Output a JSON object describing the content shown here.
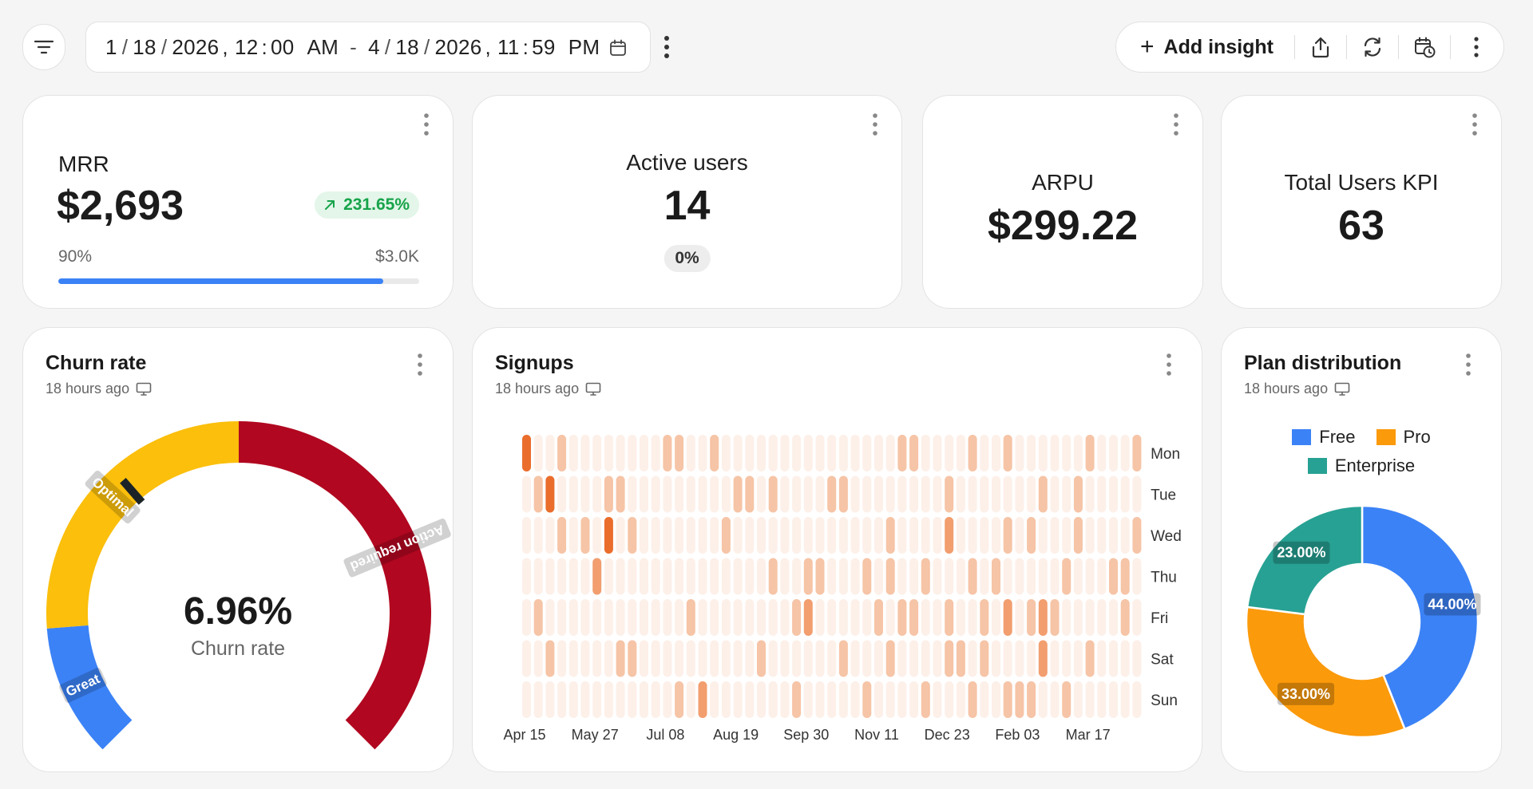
{
  "toolbar": {
    "date_range": {
      "start": {
        "month": "1",
        "day": "18",
        "year": "2026",
        "hour": "12",
        "minute": "00",
        "ampm": "AM"
      },
      "separator": "-",
      "end": {
        "month": "4",
        "day": "18",
        "year": "2026",
        "hour": "11",
        "minute": "59",
        "ampm": "PM"
      }
    },
    "add_insight_label": "Add insight",
    "icons": [
      "filter-icon",
      "calendar-icon",
      "kebab-icon",
      "plus-icon",
      "share-icon",
      "refresh-icon",
      "schedule-icon",
      "kebab-icon"
    ]
  },
  "cards": {
    "mrr": {
      "label": "MRR",
      "value": "$2,693",
      "trend": "231.65%",
      "trend_direction": "up",
      "progress_label": "90%",
      "progress_fraction": 0.9,
      "target": "$3.0K"
    },
    "active_users": {
      "label": "Active users",
      "value": "14",
      "change": "0%"
    },
    "arpu": {
      "label": "ARPU",
      "value": "$299.22"
    },
    "total_users": {
      "label": "Total Users KPI",
      "value": "63"
    },
    "churn": {
      "title": "Churn rate",
      "updated": "18 hours ago",
      "value": "6.96%",
      "label": "Churn rate",
      "zones": [
        "Great",
        "Optimal",
        "Action required"
      ]
    },
    "signups": {
      "title": "Signups",
      "updated": "18 hours ago"
    },
    "plan_distribution": {
      "title": "Plan distribution",
      "updated": "18 hours ago"
    }
  },
  "chart_data": [
    {
      "type": "gauge",
      "title": "Churn rate",
      "value": 6.96,
      "unit": "%",
      "zones": [
        {
          "label": "Great",
          "color": "#3b82f6"
        },
        {
          "label": "Optimal",
          "color": "#fbbf0c"
        },
        {
          "label": "Action required",
          "color": "#b10720"
        }
      ]
    },
    {
      "type": "heatmap",
      "title": "Signups",
      "rows": [
        "Mon",
        "Tue",
        "Wed",
        "Thu",
        "Fri",
        "Sat",
        "Sun"
      ],
      "x_ticks": [
        "Apr 15",
        "May 27",
        "Jul 08",
        "Aug 19",
        "Sep 30",
        "Nov 11",
        "Dec 23",
        "Feb 03",
        "Mar 17"
      ],
      "columns": 53,
      "low_color": "#fdf0e9",
      "high_color": "#ea6d2c",
      "values": [
        [
          3,
          0,
          0,
          1,
          0,
          0,
          0,
          0,
          0,
          0,
          0,
          0,
          1,
          1,
          0,
          0,
          1,
          0,
          0,
          0,
          0,
          0,
          0,
          0,
          0,
          0,
          0,
          0,
          0,
          0,
          0,
          0,
          1,
          1,
          0,
          0,
          0,
          0,
          1,
          0,
          0,
          1,
          0,
          0,
          0,
          0,
          0,
          0,
          1,
          0,
          0,
          0,
          1
        ],
        [
          0,
          1,
          3,
          0,
          0,
          0,
          0,
          1,
          1,
          0,
          0,
          0,
          0,
          0,
          0,
          0,
          0,
          0,
          1,
          1,
          0,
          1,
          0,
          0,
          0,
          0,
          1,
          1,
          0,
          0,
          0,
          0,
          0,
          0,
          0,
          0,
          1,
          0,
          0,
          0,
          0,
          0,
          0,
          0,
          1,
          0,
          0,
          1,
          0,
          0,
          0,
          0,
          0
        ],
        [
          0,
          0,
          0,
          1,
          0,
          1,
          0,
          3,
          0,
          1,
          0,
          0,
          0,
          0,
          0,
          0,
          0,
          1,
          0,
          0,
          0,
          0,
          0,
          0,
          0,
          0,
          0,
          0,
          0,
          0,
          0,
          1,
          0,
          0,
          0,
          0,
          2,
          0,
          0,
          0,
          0,
          1,
          0,
          1,
          0,
          0,
          0,
          1,
          0,
          0,
          0,
          0,
          1
        ],
        [
          0,
          0,
          0,
          0,
          0,
          0,
          2,
          0,
          0,
          0,
          0,
          0,
          0,
          0,
          0,
          0,
          0,
          0,
          0,
          0,
          0,
          1,
          0,
          0,
          1,
          1,
          0,
          0,
          0,
          1,
          0,
          1,
          0,
          0,
          1,
          0,
          0,
          0,
          1,
          0,
          1,
          0,
          0,
          0,
          0,
          0,
          1,
          0,
          0,
          0,
          1,
          1,
          0
        ],
        [
          0,
          1,
          0,
          0,
          0,
          0,
          0,
          0,
          0,
          0,
          0,
          0,
          0,
          0,
          1,
          0,
          0,
          0,
          0,
          0,
          0,
          0,
          0,
          1,
          2,
          0,
          0,
          0,
          0,
          0,
          1,
          0,
          1,
          1,
          0,
          0,
          1,
          0,
          0,
          1,
          0,
          2,
          0,
          1,
          2,
          1,
          0,
          0,
          0,
          0,
          0,
          1,
          0
        ],
        [
          0,
          0,
          1,
          0,
          0,
          0,
          0,
          0,
          1,
          1,
          0,
          0,
          0,
          0,
          0,
          0,
          0,
          0,
          0,
          0,
          1,
          0,
          0,
          0,
          0,
          0,
          0,
          1,
          0,
          0,
          0,
          1,
          0,
          0,
          0,
          0,
          1,
          1,
          0,
          1,
          0,
          0,
          0,
          0,
          2,
          0,
          0,
          0,
          1,
          0,
          0,
          0,
          0
        ],
        [
          0,
          0,
          0,
          0,
          0,
          0,
          0,
          0,
          0,
          0,
          0,
          0,
          0,
          1,
          0,
          2,
          0,
          0,
          0,
          0,
          0,
          0,
          0,
          1,
          0,
          0,
          0,
          0,
          0,
          1,
          0,
          0,
          0,
          0,
          1,
          0,
          0,
          0,
          1,
          0,
          0,
          1,
          1,
          1,
          0,
          0,
          1,
          0,
          0,
          0,
          0,
          0,
          0
        ]
      ]
    },
    {
      "type": "pie",
      "title": "Plan distribution",
      "categories": [
        "Free",
        "Pro",
        "Enterprise"
      ],
      "values": [
        44.0,
        33.0,
        23.0
      ],
      "labels": [
        "44.00%",
        "33.00%",
        "23.00%"
      ],
      "colors": [
        "#3b82f6",
        "#fb9a0b",
        "#27a193"
      ],
      "legend": "top"
    }
  ]
}
